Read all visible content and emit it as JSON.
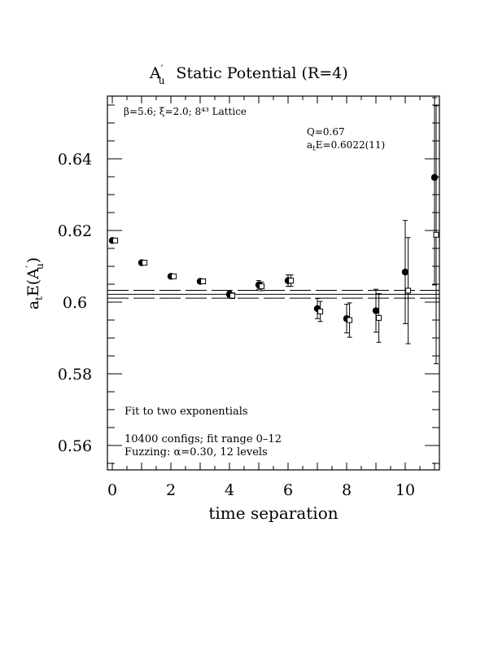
{
  "chart_data": {
    "type": "scatter",
    "title_main": "A",
    "title_sub": "u",
    "title_rest": "Static Potential (R=4)",
    "xlabel": "time separation",
    "ylabel": "a",
    "ylabel_parts": {
      "t": "t",
      "E": "E(A",
      "prime": "′",
      "u": "u",
      "close": ")"
    },
    "xlim": [
      -0.1,
      11.1
    ],
    "ylim": [
      0.553,
      0.658
    ],
    "x_ticks": [
      0,
      2,
      4,
      6,
      8,
      10
    ],
    "x_tick_labels": [
      "0",
      "2",
      "4",
      "6",
      "8",
      "10"
    ],
    "y_ticks": [
      0.56,
      0.58,
      0.6,
      0.62,
      0.64
    ],
    "y_tick_labels": [
      "0.56",
      "0.58",
      "0.6",
      "0.62",
      "0.64"
    ],
    "fit_line": {
      "value": 0.6022,
      "error": 0.0011
    },
    "annotations": {
      "lattice": "β=5.6; ξ=2.0; 8⁴³ Lattice",
      "q": "Q=0.67",
      "energy": "a",
      "energy_t": "t",
      "energy_rest": "E=0.6022(11)",
      "fit_type": "Fit to two exponentials",
      "configs": "10400 configs; fit range 0–12",
      "fuzzing": "Fuzzing: α=0.30, 12 levels"
    },
    "series": [
      {
        "marker": "filled-circle",
        "x": [
          0,
          1,
          2,
          3,
          4,
          5,
          6,
          7,
          8,
          9,
          10,
          11
        ],
        "y": [
          0.6172,
          0.611,
          0.6072,
          0.6058,
          0.6022,
          0.6048,
          0.606,
          0.5982,
          0.5954,
          0.5976,
          0.6084,
          0.6348
        ],
        "err": [
          0.0004,
          0.0005,
          0.0005,
          0.0006,
          0.0008,
          0.0012,
          0.0016,
          0.0028,
          0.004,
          0.006,
          0.0144,
          0.03
        ]
      },
      {
        "marker": "open-square",
        "x": [
          0.1,
          1.1,
          2.1,
          3.1,
          4.1,
          5.1,
          6.1,
          7.1,
          8.1,
          9.1,
          10.1,
          11.1
        ],
        "y": [
          0.6172,
          0.611,
          0.6072,
          0.6058,
          0.6018,
          0.6044,
          0.606,
          0.5974,
          0.595,
          0.5956,
          0.6032,
          0.6188
        ],
        "err": [
          0.0004,
          0.0005,
          0.0005,
          0.0006,
          0.0008,
          0.0012,
          0.0016,
          0.0028,
          0.0048,
          0.0068,
          0.0148,
          0.036
        ]
      }
    ]
  }
}
